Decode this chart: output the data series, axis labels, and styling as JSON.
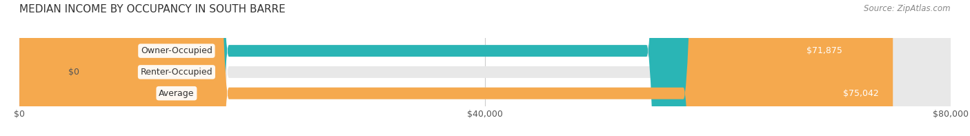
{
  "title": "MEDIAN INCOME BY OCCUPANCY IN SOUTH BARRE",
  "source": "Source: ZipAtlas.com",
  "categories": [
    "Owner-Occupied",
    "Renter-Occupied",
    "Average"
  ],
  "values": [
    71875,
    0,
    75042
  ],
  "bar_colors": [
    "#2ab5b5",
    "#c9a0dc",
    "#f5a94e"
  ],
  "value_labels": [
    "$71,875",
    "$0",
    "$75,042"
  ],
  "xlim": [
    0,
    80000
  ],
  "xtick_labels": [
    "$0",
    "$40,000",
    "$80,000"
  ],
  "figsize": [
    14.06,
    1.97
  ],
  "dpi": 100,
  "bar_height": 0.55,
  "background_color": "#ffffff",
  "title_fontsize": 11,
  "source_fontsize": 8.5,
  "label_fontsize": 9,
  "value_fontsize": 9,
  "tick_fontsize": 9
}
